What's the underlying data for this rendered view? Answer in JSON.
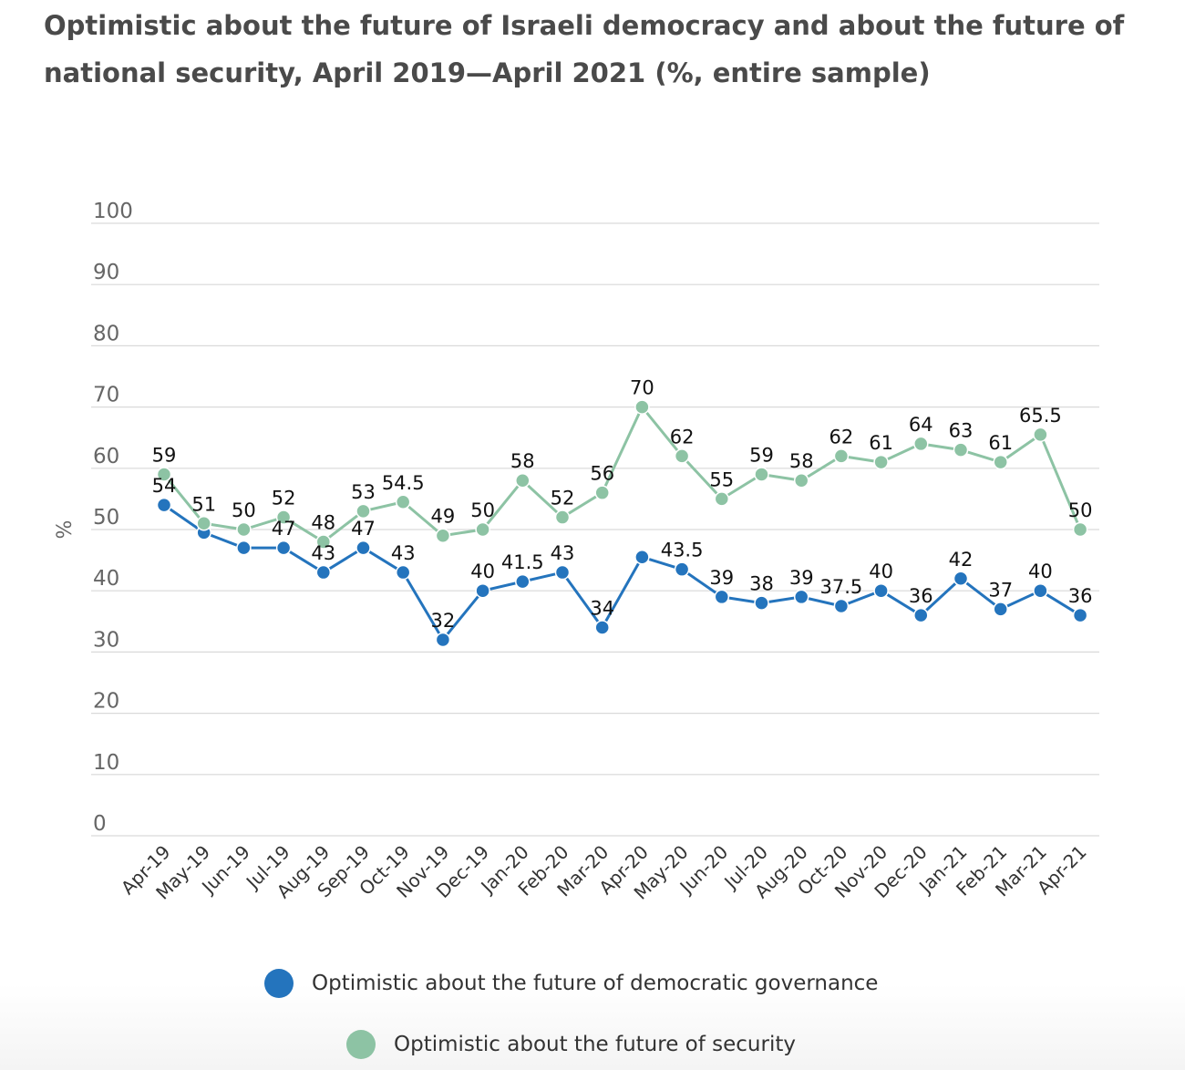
{
  "title": "Optimistic about the future of Israeli democracy and about the future of national security, April 2019—April 2021 (%, entire sample)",
  "chart_data": {
    "type": "line",
    "title": "Optimistic about the future of Israeli democracy and about the future of national security, April 2019—April 2021 (%, entire sample)",
    "xlabel": "",
    "ylabel": "%",
    "ylim": [
      0,
      100
    ],
    "yticks": [
      0,
      10,
      20,
      30,
      40,
      50,
      60,
      70,
      80,
      90,
      100
    ],
    "grid": "horizontal",
    "legend_position": "bottom",
    "categories": [
      "Apr-19",
      "May-19",
      "Jun-19",
      "Jul-19",
      "Aug-19",
      "Sep-19",
      "Oct-19",
      "Nov-19",
      "Dec-19",
      "Jan-20",
      "Feb-20",
      "Mar-20",
      "Apr-20",
      "May-20",
      "Jun-20",
      "Jul-20",
      "Aug-20",
      "Oct-20",
      "Nov-20",
      "Dec-20",
      "Jan-21",
      "Feb-21",
      "Mar-21",
      "Apr-21"
    ],
    "series": [
      {
        "name": "Optimistic about the future of democratic governance",
        "color": "#2474bd",
        "values": [
          54,
          49.5,
          47,
          47,
          43,
          47,
          43,
          32,
          40,
          41.5,
          43,
          34,
          45.5,
          43.5,
          39,
          38,
          39,
          37.5,
          40,
          36,
          42,
          37,
          40,
          36
        ],
        "labels": [
          "54",
          "",
          "",
          "47",
          "43",
          "47",
          "43",
          "32",
          "40",
          "41.5",
          "43",
          "34",
          "",
          "43.5",
          "39",
          "38",
          "39",
          "37.5",
          "40",
          "36",
          "42",
          "37",
          "40",
          "36"
        ]
      },
      {
        "name": "Optimistic about the future of security",
        "color": "#8dc3a4",
        "values": [
          59,
          51,
          50,
          52,
          48,
          53,
          54.5,
          49,
          50,
          58,
          52,
          56,
          70,
          62,
          55,
          59,
          58,
          62,
          61,
          64,
          63,
          61,
          65.5,
          50
        ],
        "labels": [
          "59",
          "51",
          "50",
          "52",
          "48",
          "53",
          "54.5",
          "49",
          "50",
          "58",
          "52",
          "56",
          "70",
          "62",
          "55",
          "59",
          "58",
          "62",
          "61",
          "64",
          "63",
          "61",
          "65.5",
          "50"
        ]
      }
    ]
  }
}
